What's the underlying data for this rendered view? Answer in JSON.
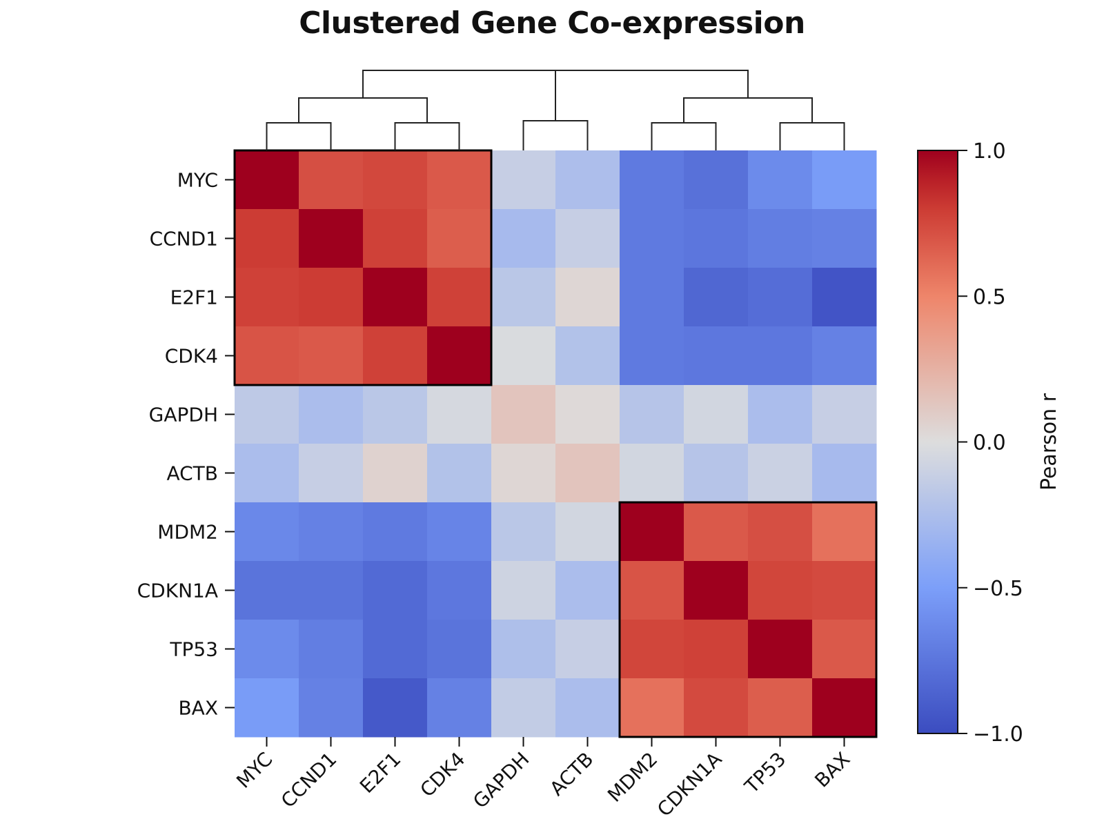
{
  "chart_data": {
    "type": "heatmap",
    "title": "Clustered Gene Co-expression",
    "rows": [
      "MYC",
      "CCND1",
      "E2F1",
      "CDK4",
      "GAPDH",
      "ACTB",
      "MDM2",
      "CDKN1A",
      "TP53",
      "BAX"
    ],
    "columns": [
      "MYC",
      "CCND1",
      "E2F1",
      "CDK4",
      "GAPDH",
      "ACTB",
      "MDM2",
      "CDKN1A",
      "TP53",
      "BAX"
    ],
    "values": [
      [
        1.0,
        0.72,
        0.75,
        0.68,
        -0.12,
        -0.25,
        -0.72,
        -0.78,
        -0.62,
        -0.52
      ],
      [
        0.8,
        1.0,
        0.78,
        0.66,
        -0.28,
        -0.12,
        -0.72,
        -0.75,
        -0.7,
        -0.68
      ],
      [
        0.78,
        0.8,
        1.0,
        0.78,
        -0.18,
        0.04,
        -0.72,
        -0.84,
        -0.8,
        -0.95
      ],
      [
        0.7,
        0.68,
        0.78,
        1.0,
        -0.02,
        -0.22,
        -0.72,
        -0.74,
        -0.74,
        -0.68
      ],
      [
        -0.16,
        -0.26,
        -0.18,
        -0.04,
        0.14,
        0.02,
        -0.2,
        -0.06,
        -0.26,
        -0.12
      ],
      [
        -0.26,
        -0.12,
        0.06,
        -0.22,
        0.04,
        0.14,
        -0.06,
        -0.2,
        -0.1,
        -0.28
      ],
      [
        -0.64,
        -0.68,
        -0.72,
        -0.66,
        -0.18,
        -0.06,
        1.0,
        0.68,
        0.72,
        0.58
      ],
      [
        -0.76,
        -0.76,
        -0.82,
        -0.74,
        -0.08,
        -0.26,
        0.7,
        1.0,
        0.76,
        0.74
      ],
      [
        -0.62,
        -0.7,
        -0.82,
        -0.76,
        -0.24,
        -0.12,
        0.76,
        0.78,
        1.0,
        0.68
      ],
      [
        -0.52,
        -0.68,
        -0.92,
        -0.68,
        -0.14,
        -0.26,
        0.58,
        0.74,
        0.66,
        1.0
      ]
    ],
    "vmin": -1.0,
    "vmax": 1.0,
    "colormap": "coolwarm",
    "colorbar_label": "Pearson r",
    "colorbar_ticks": [
      "1.0",
      "0.5",
      "0.0",
      "−0.5",
      "−1.0"
    ],
    "highlighted_clusters": [
      {
        "from": "MYC",
        "to": "CDK4"
      },
      {
        "from": "MDM2",
        "to": "BAX"
      }
    ],
    "dendrogram": {
      "merges": [
        {
          "left": "MYC",
          "right": "CCND1",
          "height": 1
        },
        {
          "left": "E2F1",
          "right": "CDK4",
          "height": 1
        },
        {
          "left": "MDM2",
          "right": "CDKN1A",
          "height": 1
        },
        {
          "left": "TP53",
          "right": "BAX",
          "height": 1
        },
        {
          "left": "GAPDH",
          "right": "ACTB",
          "height": 1.1
        },
        {
          "left": "MYC,CCND1",
          "right": "E2F1,CDK4",
          "height": 2
        },
        {
          "left": "MDM2,CDKN1A",
          "right": "TP53,BAX",
          "height": 2
        },
        {
          "left": "MYC..CDK4",
          "right": "MDM2..BAX",
          "height": 3
        },
        {
          "left": "GAPDH,ACTB",
          "right": "MYC..BAX",
          "height": 3
        }
      ]
    }
  }
}
